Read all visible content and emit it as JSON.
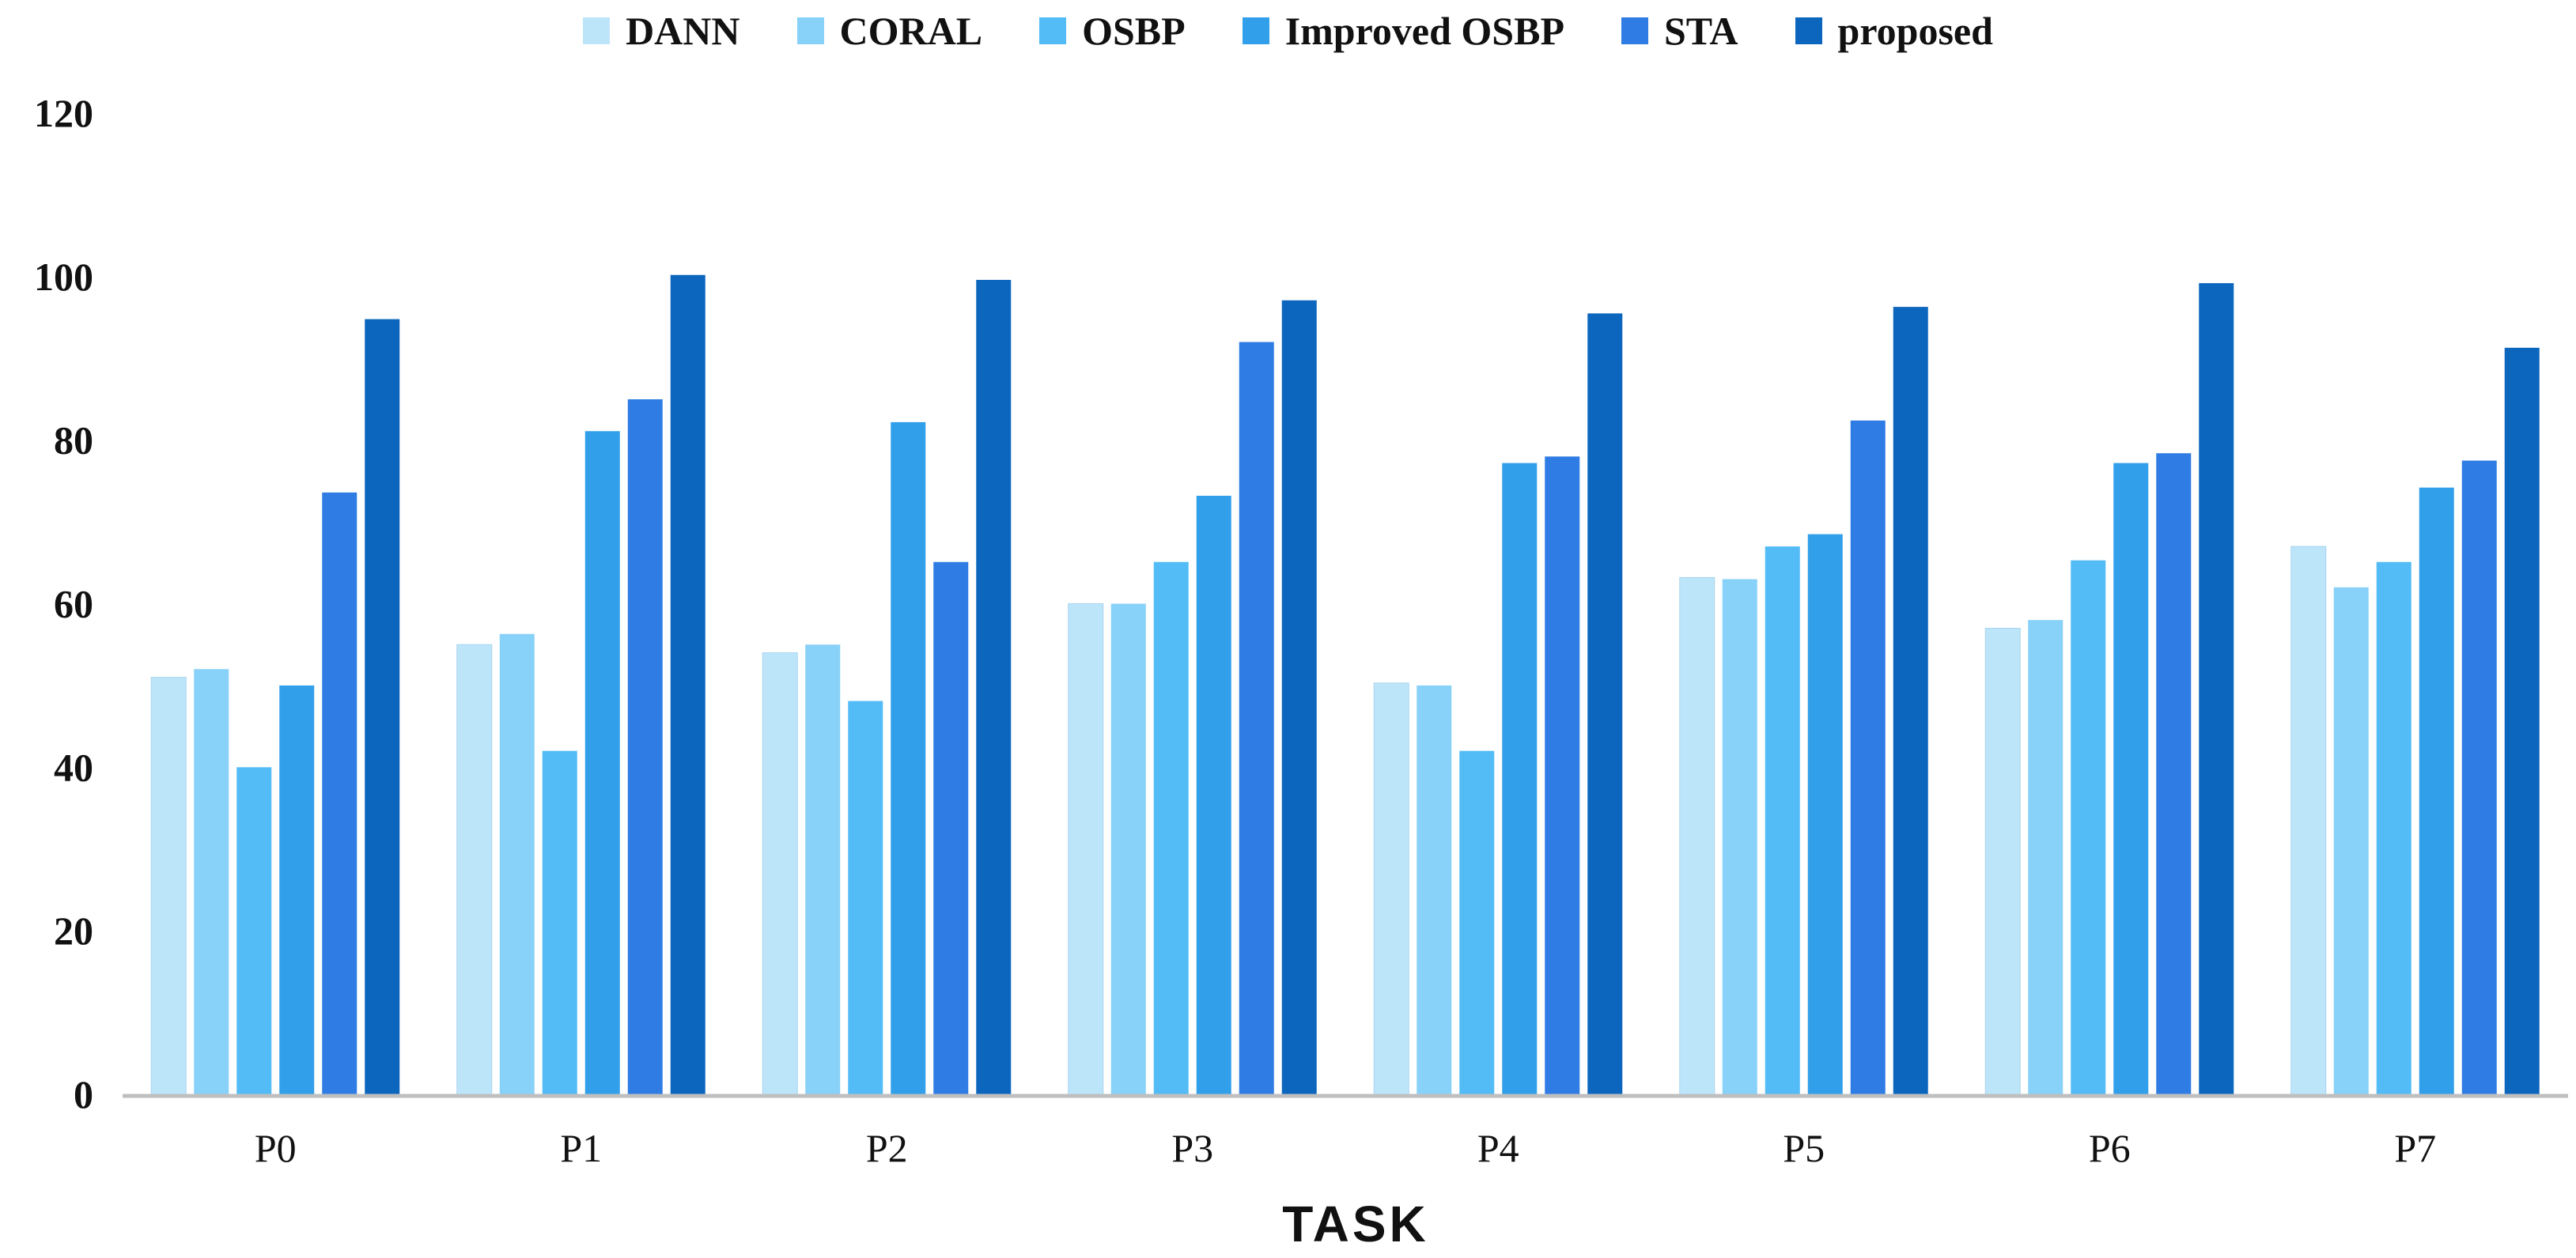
{
  "chart_data": {
    "type": "bar",
    "title": "",
    "xlabel": "TASK",
    "ylabel": "",
    "ylim": [
      0,
      120
    ],
    "yticks": [
      0,
      20,
      40,
      60,
      80,
      100,
      120
    ],
    "grid": false,
    "legend_position": "top-center",
    "categories": [
      "P0",
      "P1",
      "P2",
      "P3",
      "P4",
      "P5",
      "P6",
      "P7"
    ],
    "series": [
      {
        "name": "DANN",
        "color": "#BDE5FA",
        "values": [
          51,
          55,
          54,
          60,
          50.3,
          63.2,
          57,
          67
        ]
      },
      {
        "name": "CORAL",
        "color": "#88D1F8",
        "values": [
          52,
          56.3,
          55,
          60,
          50,
          63,
          58,
          62
        ]
      },
      {
        "name": "OSBP",
        "color": "#53BCF6",
        "values": [
          40,
          42,
          48.1,
          65.1,
          42,
          67,
          65.3,
          65.1
        ]
      },
      {
        "name": "Improved OSBP",
        "color": "#319FEA",
        "values": [
          50,
          81.1,
          82.2,
          73.2,
          77.2,
          68.5,
          77.2,
          74.2
        ]
      },
      {
        "name": "STA",
        "color": "#2E7CE4",
        "values": [
          73.6,
          85,
          65.1,
          92,
          78,
          82.4,
          78.4,
          77.5
        ]
      },
      {
        "name": "proposed",
        "color": "#0C66BD",
        "values": [
          94.8,
          100.2,
          99.6,
          97.1,
          95.5,
          96.3,
          99.2,
          91.3
        ]
      }
    ]
  }
}
